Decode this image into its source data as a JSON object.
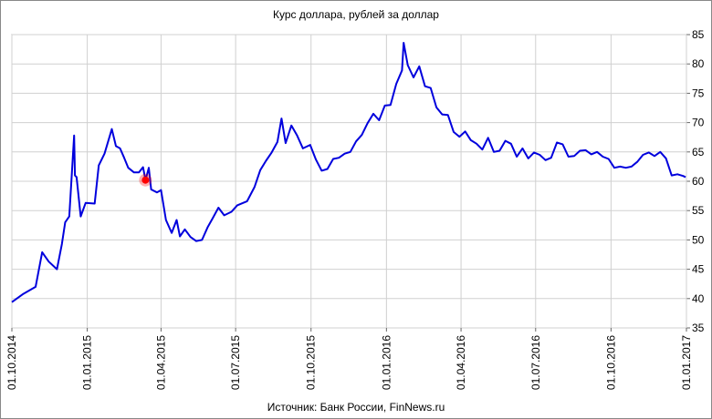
{
  "chart_data": {
    "type": "line",
    "title": "Курс доллара,  рублей за доллар",
    "source": "Источник: Банк России, FinNews.ru",
    "x": [
      "01.10.2014",
      "15.10.2014",
      "30.10.2014",
      "07.11.2014",
      "15.11.2014",
      "25.11.2014",
      "01.12.2014",
      "05.12.2014",
      "10.12.2014",
      "16.12.2014",
      "17.12.2014",
      "19.12.2014",
      "24.12.2014",
      "30.12.2014",
      "10.01.2015",
      "15.01.2015",
      "22.01.2015",
      "31.01.2015",
      "05.02.2015",
      "10.02.2015",
      "15.02.2015",
      "20.02.2015",
      "27.02.2015",
      "05.03.2015",
      "10.03.2015",
      "13.03.2015",
      "17.03.2015",
      "20.03.2015",
      "27.03.2015",
      "01.04.2015",
      "07.04.2015",
      "14.04.2015",
      "20.04.2015",
      "24.04.2015",
      "30.04.2015",
      "07.05.2015",
      "14.05.2015",
      "21.05.2015",
      "28.05.2015",
      "03.06.2015",
      "10.06.2015",
      "17.06.2015",
      "26.06.2015",
      "03.07.2015",
      "15.07.2015",
      "24.07.2015",
      "31.07.2015",
      "07.08.2015",
      "14.08.2015",
      "21.08.2015",
      "26.08.2015",
      "31.08.2015",
      "07.09.2015",
      "14.09.2015",
      "21.09.2015",
      "30.09.2015",
      "07.10.2015",
      "14.10.2015",
      "21.10.2015",
      "28.10.2015",
      "04.11.2015",
      "11.11.2015",
      "18.11.2015",
      "25.11.2015",
      "02.12.2015",
      "09.12.2015",
      "16.12.2015",
      "23.12.2015",
      "30.12.2015",
      "06.01.2016",
      "13.01.2016",
      "20.01.2016",
      "22.01.2016",
      "27.01.2016",
      "03.02.2016",
      "10.02.2016",
      "17.02.2016",
      "24.02.2016",
      "02.03.2016",
      "09.03.2016",
      "16.03.2016",
      "23.03.2016",
      "30.03.2016",
      "06.04.2016",
      "13.04.2016",
      "20.04.2016",
      "27.04.2016",
      "04.05.2016",
      "11.05.2016",
      "18.05.2016",
      "25.05.2016",
      "01.06.2016",
      "08.06.2016",
      "15.06.2016",
      "22.06.2016",
      "29.06.2016",
      "06.07.2016",
      "13.07.2016",
      "20.07.2016",
      "27.07.2016",
      "03.08.2016",
      "10.08.2016",
      "17.08.2016",
      "24.08.2016",
      "31.08.2016",
      "07.09.2016",
      "14.09.2016",
      "21.09.2016",
      "28.09.2016",
      "05.10.2016",
      "12.10.2016",
      "19.10.2016",
      "26.10.2016",
      "02.11.2016",
      "09.11.2016",
      "16.11.2016",
      "23.11.2016",
      "30.11.2016",
      "07.12.2016",
      "14.12.2016",
      "21.12.2016",
      "28.12.2016",
      "31.12.2016"
    ],
    "series": [
      {
        "color": "#0000dd",
        "values": [
          39.4,
          40.8,
          42.0,
          47.9,
          46.3,
          45.0,
          49.3,
          53.0,
          54.0,
          67.8,
          61.0,
          60.7,
          54.0,
          56.3,
          56.2,
          62.7,
          64.7,
          68.9,
          66.0,
          65.6,
          64.0,
          62.3,
          61.5,
          61.5,
          62.4,
          60.2,
          62.3,
          58.6,
          58.1,
          58.5,
          53.4,
          51.2,
          53.4,
          50.6,
          51.8,
          50.5,
          49.8,
          50.0,
          52.2,
          53.7,
          55.5,
          54.2,
          54.8,
          55.9,
          56.6,
          59.0,
          61.9,
          63.5,
          64.9,
          66.7,
          70.7,
          66.5,
          69.5,
          67.8,
          65.6,
          66.2,
          63.7,
          61.8,
          62.1,
          63.8,
          64.0,
          64.7,
          65.0,
          66.8,
          67.9,
          69.9,
          71.5,
          70.4,
          72.9,
          73.0,
          76.6,
          78.9,
          83.6,
          79.8,
          77.7,
          79.6,
          76.2,
          75.9,
          72.6,
          71.4,
          71.3,
          68.4,
          67.6,
          68.5,
          67.0,
          66.4,
          65.4,
          67.4,
          65.0,
          65.2,
          66.9,
          66.4,
          64.2,
          65.6,
          63.9,
          64.9,
          64.5,
          63.6,
          64.0,
          66.6,
          66.3,
          64.2,
          64.3,
          65.2,
          65.3,
          64.6,
          65.0,
          64.2,
          63.8,
          62.3,
          62.5,
          62.3,
          62.5,
          63.3,
          64.5,
          64.9,
          64.3,
          65.0,
          63.9,
          61.0,
          61.2,
          60.9,
          60.7
        ]
      }
    ],
    "highlight": {
      "x": "13.03.2015",
      "value": 60.2,
      "color": "#ff0000"
    },
    "xlim": [
      "01.10.2014",
      "01.01.2017"
    ],
    "xticks": [
      "01.10.2014",
      "01.01.2015",
      "01.04.2015",
      "01.07.2015",
      "01.10.2015",
      "01.01.2016",
      "01.04.2016",
      "01.07.2016",
      "01.10.2016",
      "01.01.2017"
    ],
    "ylim": [
      35,
      85
    ],
    "yticks": [
      35,
      40,
      45,
      50,
      55,
      60,
      65,
      70,
      75,
      80,
      85
    ],
    "grid": true
  }
}
